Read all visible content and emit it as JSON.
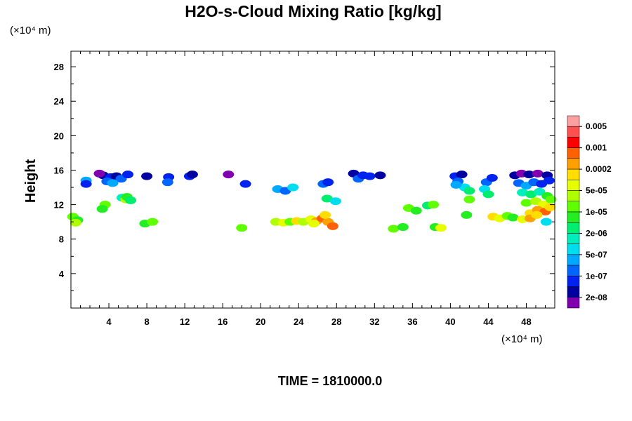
{
  "chart_data": {
    "type": "heatmap",
    "title": "H2O-s-Cloud Mixing Ratio [kg/kg]",
    "xlabel": "",
    "ylabel": "Height",
    "x_unit": "(×10⁴ m)",
    "y_unit": "(×10⁴ m)",
    "time_label": "TIME = 1810000.0",
    "xlim": [
      0,
      51
    ],
    "ylim": [
      0,
      29.8
    ],
    "xticks": [
      "4",
      "8",
      "12",
      "16",
      "20",
      "24",
      "28",
      "32",
      "36",
      "40",
      "44",
      "48"
    ],
    "xtick_values": [
      4,
      8,
      12,
      16,
      20,
      24,
      28,
      32,
      36,
      40,
      44,
      48
    ],
    "yticks": [
      "4",
      "8",
      "12",
      "16",
      "20",
      "24",
      "28"
    ],
    "ytick_values": [
      4,
      8,
      12,
      16,
      20,
      24,
      28
    ],
    "colorbar": {
      "colors": [
        "#ffa0a0",
        "#ff5050",
        "#ff0000",
        "#ff6000",
        "#ffa000",
        "#ffdd00",
        "#e6ff00",
        "#b0ff00",
        "#60ff00",
        "#22ee22",
        "#00ee70",
        "#00eebb",
        "#00ddee",
        "#00a8ff",
        "#0066ff",
        "#0022ee",
        "#0000a0",
        "#8000b0"
      ],
      "labels": [
        "0.005",
        "0.001",
        "0.0002",
        "5e-05",
        "1e-05",
        "2e-06",
        "5e-07",
        "1e-07",
        "2e-08"
      ]
    },
    "cells": [
      {
        "x": 1.6,
        "y": 14.8,
        "level": 13
      },
      {
        "x": 1.6,
        "y": 14.4,
        "level": 15
      },
      {
        "x": 3.4,
        "y": 15.4,
        "level": 16
      },
      {
        "x": 4.2,
        "y": 15.2,
        "level": 15
      },
      {
        "x": 3.8,
        "y": 14.7,
        "level": 14
      },
      {
        "x": 4.8,
        "y": 15.3,
        "level": 16
      },
      {
        "x": 5.3,
        "y": 15.0,
        "level": 14
      },
      {
        "x": 4.4,
        "y": 14.5,
        "level": 13
      },
      {
        "x": 6.0,
        "y": 15.5,
        "level": 15
      },
      {
        "x": 3.0,
        "y": 15.6,
        "level": 17
      },
      {
        "x": 5.4,
        "y": 12.8,
        "level": 11
      },
      {
        "x": 5.8,
        "y": 12.6,
        "level": 7
      },
      {
        "x": 5.9,
        "y": 12.9,
        "level": 9
      },
      {
        "x": 6.3,
        "y": 12.5,
        "level": 10
      },
      {
        "x": 3.6,
        "y": 12.0,
        "level": 8
      },
      {
        "x": 3.3,
        "y": 11.5,
        "level": 9
      },
      {
        "x": 0.2,
        "y": 10.6,
        "level": 8
      },
      {
        "x": 0.7,
        "y": 10.2,
        "level": 9
      },
      {
        "x": 0.5,
        "y": 9.9,
        "level": 7
      },
      {
        "x": 7.8,
        "y": 9.8,
        "level": 9
      },
      {
        "x": 8.6,
        "y": 10.0,
        "level": 8
      },
      {
        "x": 8.0,
        "y": 15.3,
        "level": 16
      },
      {
        "x": 10.3,
        "y": 15.2,
        "level": 15
      },
      {
        "x": 10.2,
        "y": 14.6,
        "level": 14
      },
      {
        "x": 12.5,
        "y": 15.3,
        "level": 15
      },
      {
        "x": 12.8,
        "y": 15.5,
        "level": 16
      },
      {
        "x": 16.6,
        "y": 15.5,
        "level": 17
      },
      {
        "x": 18.4,
        "y": 14.4,
        "level": 15
      },
      {
        "x": 21.8,
        "y": 13.8,
        "level": 13
      },
      {
        "x": 22.6,
        "y": 13.6,
        "level": 14
      },
      {
        "x": 23.4,
        "y": 14.0,
        "level": 12
      },
      {
        "x": 18.0,
        "y": 9.3,
        "level": 8
      },
      {
        "x": 21.6,
        "y": 10.0,
        "level": 7
      },
      {
        "x": 22.4,
        "y": 9.9,
        "level": 6
      },
      {
        "x": 23.1,
        "y": 10.0,
        "level": 8
      },
      {
        "x": 23.8,
        "y": 10.1,
        "level": 5
      },
      {
        "x": 24.5,
        "y": 10.0,
        "level": 7
      },
      {
        "x": 25.3,
        "y": 10.3,
        "level": 6
      },
      {
        "x": 25.9,
        "y": 10.1,
        "level": 4
      },
      {
        "x": 26.5,
        "y": 10.4,
        "level": 3
      },
      {
        "x": 27.1,
        "y": 10.0,
        "level": 4
      },
      {
        "x": 27.6,
        "y": 9.5,
        "level": 3
      },
      {
        "x": 26.8,
        "y": 10.8,
        "level": 5
      },
      {
        "x": 25.6,
        "y": 9.8,
        "level": 6
      },
      {
        "x": 27.0,
        "y": 12.7,
        "level": 10
      },
      {
        "x": 27.9,
        "y": 12.4,
        "level": 12
      },
      {
        "x": 26.6,
        "y": 14.4,
        "level": 14
      },
      {
        "x": 27.1,
        "y": 14.6,
        "level": 15
      },
      {
        "x": 29.8,
        "y": 15.6,
        "level": 16
      },
      {
        "x": 30.3,
        "y": 15.0,
        "level": 14
      },
      {
        "x": 30.8,
        "y": 15.4,
        "level": 15
      },
      {
        "x": 31.5,
        "y": 15.3,
        "level": 15
      },
      {
        "x": 32.6,
        "y": 15.4,
        "level": 16
      },
      {
        "x": 34.0,
        "y": 9.2,
        "level": 8
      },
      {
        "x": 35.0,
        "y": 9.4,
        "level": 9
      },
      {
        "x": 35.6,
        "y": 11.6,
        "level": 8
      },
      {
        "x": 36.4,
        "y": 11.3,
        "level": 9
      },
      {
        "x": 37.6,
        "y": 11.9,
        "level": 10
      },
      {
        "x": 38.2,
        "y": 12.0,
        "level": 8
      },
      {
        "x": 38.4,
        "y": 9.4,
        "level": 9
      },
      {
        "x": 39.0,
        "y": 9.3,
        "level": 6
      },
      {
        "x": 40.5,
        "y": 15.3,
        "level": 15
      },
      {
        "x": 41.2,
        "y": 15.5,
        "level": 16
      },
      {
        "x": 40.8,
        "y": 14.7,
        "level": 14
      },
      {
        "x": 41.5,
        "y": 14.0,
        "level": 12
      },
      {
        "x": 42.0,
        "y": 13.6,
        "level": 10
      },
      {
        "x": 40.6,
        "y": 14.3,
        "level": 13
      },
      {
        "x": 42.0,
        "y": 12.6,
        "level": 8
      },
      {
        "x": 41.7,
        "y": 10.8,
        "level": 9
      },
      {
        "x": 43.8,
        "y": 14.6,
        "level": 14
      },
      {
        "x": 44.4,
        "y": 15.1,
        "level": 15
      },
      {
        "x": 43.6,
        "y": 13.8,
        "level": 12
      },
      {
        "x": 44.0,
        "y": 13.2,
        "level": 10
      },
      {
        "x": 44.5,
        "y": 10.6,
        "level": 5
      },
      {
        "x": 45.2,
        "y": 10.4,
        "level": 6
      },
      {
        "x": 46.0,
        "y": 10.7,
        "level": 8
      },
      {
        "x": 46.6,
        "y": 10.5,
        "level": 9
      },
      {
        "x": 46.8,
        "y": 15.4,
        "level": 16
      },
      {
        "x": 47.5,
        "y": 15.6,
        "level": 17
      },
      {
        "x": 48.3,
        "y": 15.5,
        "level": 16
      },
      {
        "x": 49.2,
        "y": 15.6,
        "level": 17
      },
      {
        "x": 50.2,
        "y": 15.4,
        "level": 16
      },
      {
        "x": 47.2,
        "y": 14.5,
        "level": 14
      },
      {
        "x": 48.0,
        "y": 14.2,
        "level": 13
      },
      {
        "x": 48.8,
        "y": 14.6,
        "level": 14
      },
      {
        "x": 49.6,
        "y": 14.4,
        "level": 15
      },
      {
        "x": 50.4,
        "y": 14.8,
        "level": 15
      },
      {
        "x": 47.6,
        "y": 13.4,
        "level": 11
      },
      {
        "x": 48.5,
        "y": 13.2,
        "level": 10
      },
      {
        "x": 49.4,
        "y": 13.5,
        "level": 11
      },
      {
        "x": 50.2,
        "y": 13.0,
        "level": 9
      },
      {
        "x": 48.0,
        "y": 12.2,
        "level": 8
      },
      {
        "x": 49.0,
        "y": 12.4,
        "level": 7
      },
      {
        "x": 49.8,
        "y": 12.0,
        "level": 6
      },
      {
        "x": 50.6,
        "y": 12.6,
        "level": 8
      },
      {
        "x": 48.4,
        "y": 11.0,
        "level": 5
      },
      {
        "x": 49.2,
        "y": 11.4,
        "level": 4
      },
      {
        "x": 50.0,
        "y": 11.2,
        "level": 3
      },
      {
        "x": 50.5,
        "y": 11.7,
        "level": 5
      },
      {
        "x": 47.6,
        "y": 10.3,
        "level": 6
      },
      {
        "x": 48.4,
        "y": 10.4,
        "level": 4
      },
      {
        "x": 49.1,
        "y": 10.8,
        "level": 5
      },
      {
        "x": 50.1,
        "y": 10.0,
        "level": 12
      }
    ]
  }
}
